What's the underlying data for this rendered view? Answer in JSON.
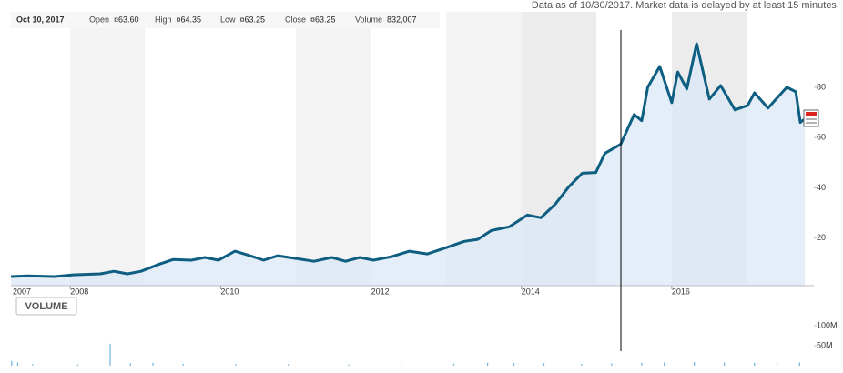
{
  "notice": "Data as of 10/30/2017. Market data is delayed by at least 15 minutes.",
  "quote": {
    "date": "Oct 10, 2017",
    "fields": [
      {
        "label": "Open",
        "value": "¤63.60"
      },
      {
        "label": "High",
        "value": "¤64.35"
      },
      {
        "label": "Low",
        "value": "¤63.25"
      },
      {
        "label": "Close",
        "value": "¤63.25"
      },
      {
        "label": "Volume",
        "value": "832,007"
      }
    ]
  },
  "volume_button": "VOLUME",
  "chart_data": [
    {
      "type": "line",
      "color": "#0e5e82",
      "grid": false,
      "x": [
        2007.21,
        2007.43,
        2007.79,
        2008.04,
        2008.4,
        2008.58,
        2008.76,
        2008.94,
        2009.19,
        2009.37,
        2009.61,
        2009.79,
        2009.97,
        2010.19,
        2010.39,
        2010.57,
        2010.76,
        2011.0,
        2011.24,
        2011.48,
        2011.66,
        2011.85,
        2012.03,
        2012.27,
        2012.51,
        2012.75,
        2013.0,
        2013.24,
        2013.42,
        2013.6,
        2013.84,
        2014.08,
        2014.26,
        2014.45,
        2014.63,
        2014.81,
        2014.99,
        2015.11,
        2015.32,
        2015.5,
        2015.6,
        2015.68,
        2015.84,
        2016.0,
        2016.08,
        2016.2,
        2016.33,
        2016.5,
        2016.65,
        2016.84,
        2017.01,
        2017.1,
        2017.28,
        2017.53,
        2017.65,
        2017.71,
        2017.77
      ],
      "values": [
        4.7,
        5.0,
        4.7,
        5.4,
        5.8,
        6.8,
        5.8,
        6.8,
        9.7,
        11.5,
        11.2,
        12.3,
        11.2,
        14.8,
        13.0,
        11.2,
        13.0,
        11.9,
        10.8,
        12.3,
        10.8,
        12.3,
        11.2,
        12.6,
        14.8,
        13.7,
        16.2,
        18.7,
        19.5,
        23.0,
        24.5,
        29.2,
        28.1,
        33.5,
        40.4,
        45.8,
        46.1,
        53.7,
        57.3,
        69.2,
        66.7,
        80.0,
        88.3,
        73.9,
        86.1,
        79.3,
        97.3,
        75.3,
        80.7,
        71.0,
        72.8,
        77.8,
        71.7,
        80.0,
        78.2,
        66.0,
        67.4
      ],
      "xlim": [
        2007.21,
        2017.89
      ],
      "ylim": [
        0,
        110
      ],
      "xticks": [
        2007,
        2008,
        2010,
        2012,
        2014,
        2016
      ],
      "yticks": [
        20,
        40,
        60,
        80
      ]
    },
    {
      "type": "bar",
      "color": "#6fb3dc",
      "x": [
        2007.22,
        2007.3,
        2007.5,
        2008.1,
        2008.53,
        2008.8,
        2009.1,
        2009.5,
        2010.2,
        2010.9,
        2011.7,
        2012.4,
        2013.1,
        2013.55,
        2013.9,
        2014.3,
        2014.8,
        2015.2,
        2015.6,
        2015.9,
        2016.3,
        2016.7,
        2017.1,
        2017.4,
        2017.7
      ],
      "values": [
        12000000,
        8000000,
        4000000,
        3000000,
        55000000,
        6000000,
        7000000,
        5000000,
        4000000,
        4000000,
        3000000,
        4000000,
        5000000,
        7000000,
        6000000,
        6000000,
        5000000,
        6000000,
        7000000,
        8000000,
        9000000,
        8000000,
        7000000,
        9000000,
        8000000
      ],
      "xlim": [
        2007.21,
        2017.89
      ],
      "ylim": [
        0,
        110000000
      ],
      "yticks": [
        {
          "value": 50000000,
          "label": "50M"
        },
        {
          "value": 100000000,
          "label": "100M"
        }
      ]
    }
  ]
}
